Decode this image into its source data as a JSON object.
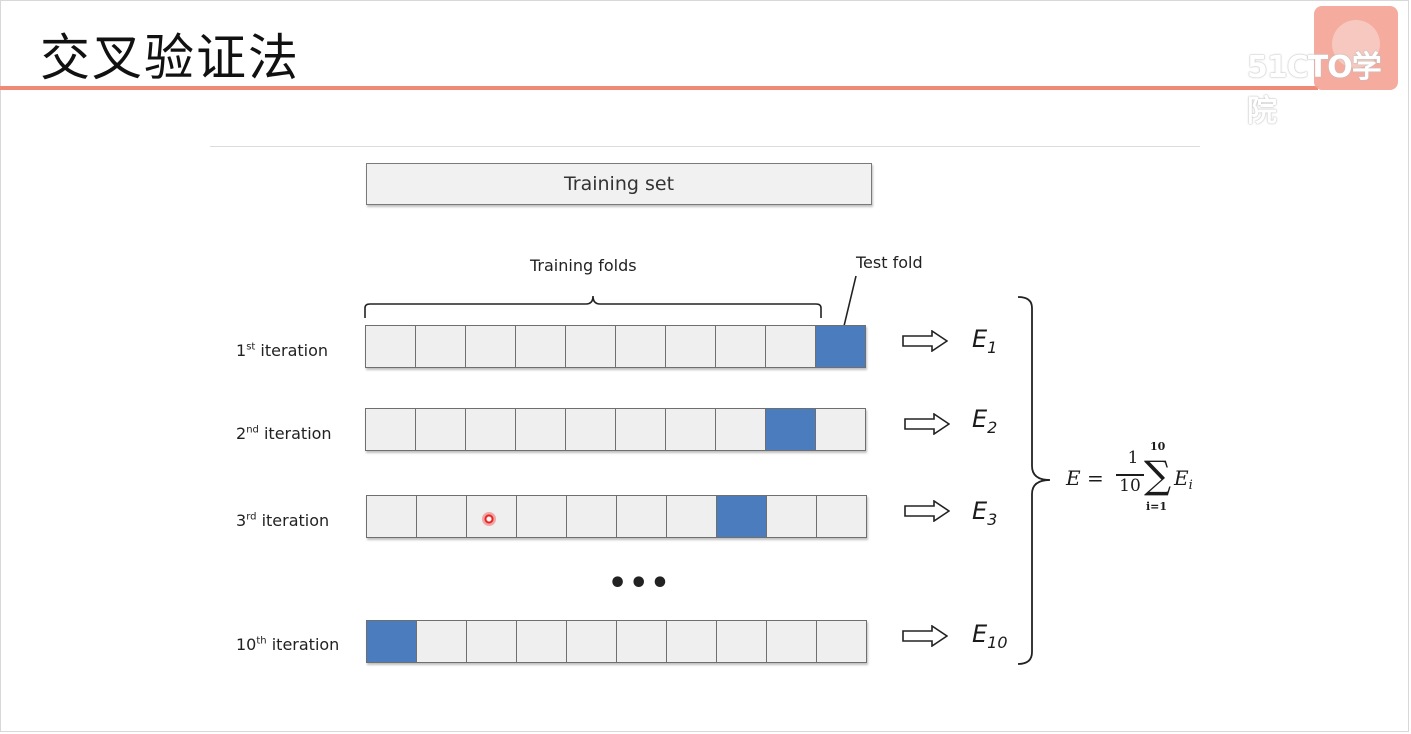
{
  "slide": {
    "title": "交叉验证法",
    "watermark": "51CTO学院"
  },
  "diagram": {
    "training_set_label": "Training set",
    "training_folds_label": "Training folds",
    "test_fold_label": "Test fold",
    "fold_count": 10,
    "fold_color": "#efefef",
    "test_fold_color": "#4a7cbe",
    "ellipsis": "•••",
    "iterations": [
      {
        "num": "1",
        "suffix": "st",
        "text": "iteration",
        "test_fold_index": 9,
        "error": "E",
        "error_sub": "1"
      },
      {
        "num": "2",
        "suffix": "nd",
        "text": "iteration",
        "test_fold_index": 8,
        "error": "E",
        "error_sub": "2"
      },
      {
        "num": "3",
        "suffix": "rd",
        "text": "iteration",
        "test_fold_index": 7,
        "error": "E",
        "error_sub": "3"
      },
      {
        "num": "10",
        "suffix": "th",
        "text": "iteration",
        "test_fold_index": 0,
        "error": "E",
        "error_sub": "10"
      }
    ],
    "formula": {
      "lhs": "E",
      "equals": "=",
      "numerator": "1",
      "denominator": "10",
      "sigma": "∑",
      "upper": "10",
      "lower": "i=1",
      "term": "E",
      "term_sub": "i"
    }
  }
}
